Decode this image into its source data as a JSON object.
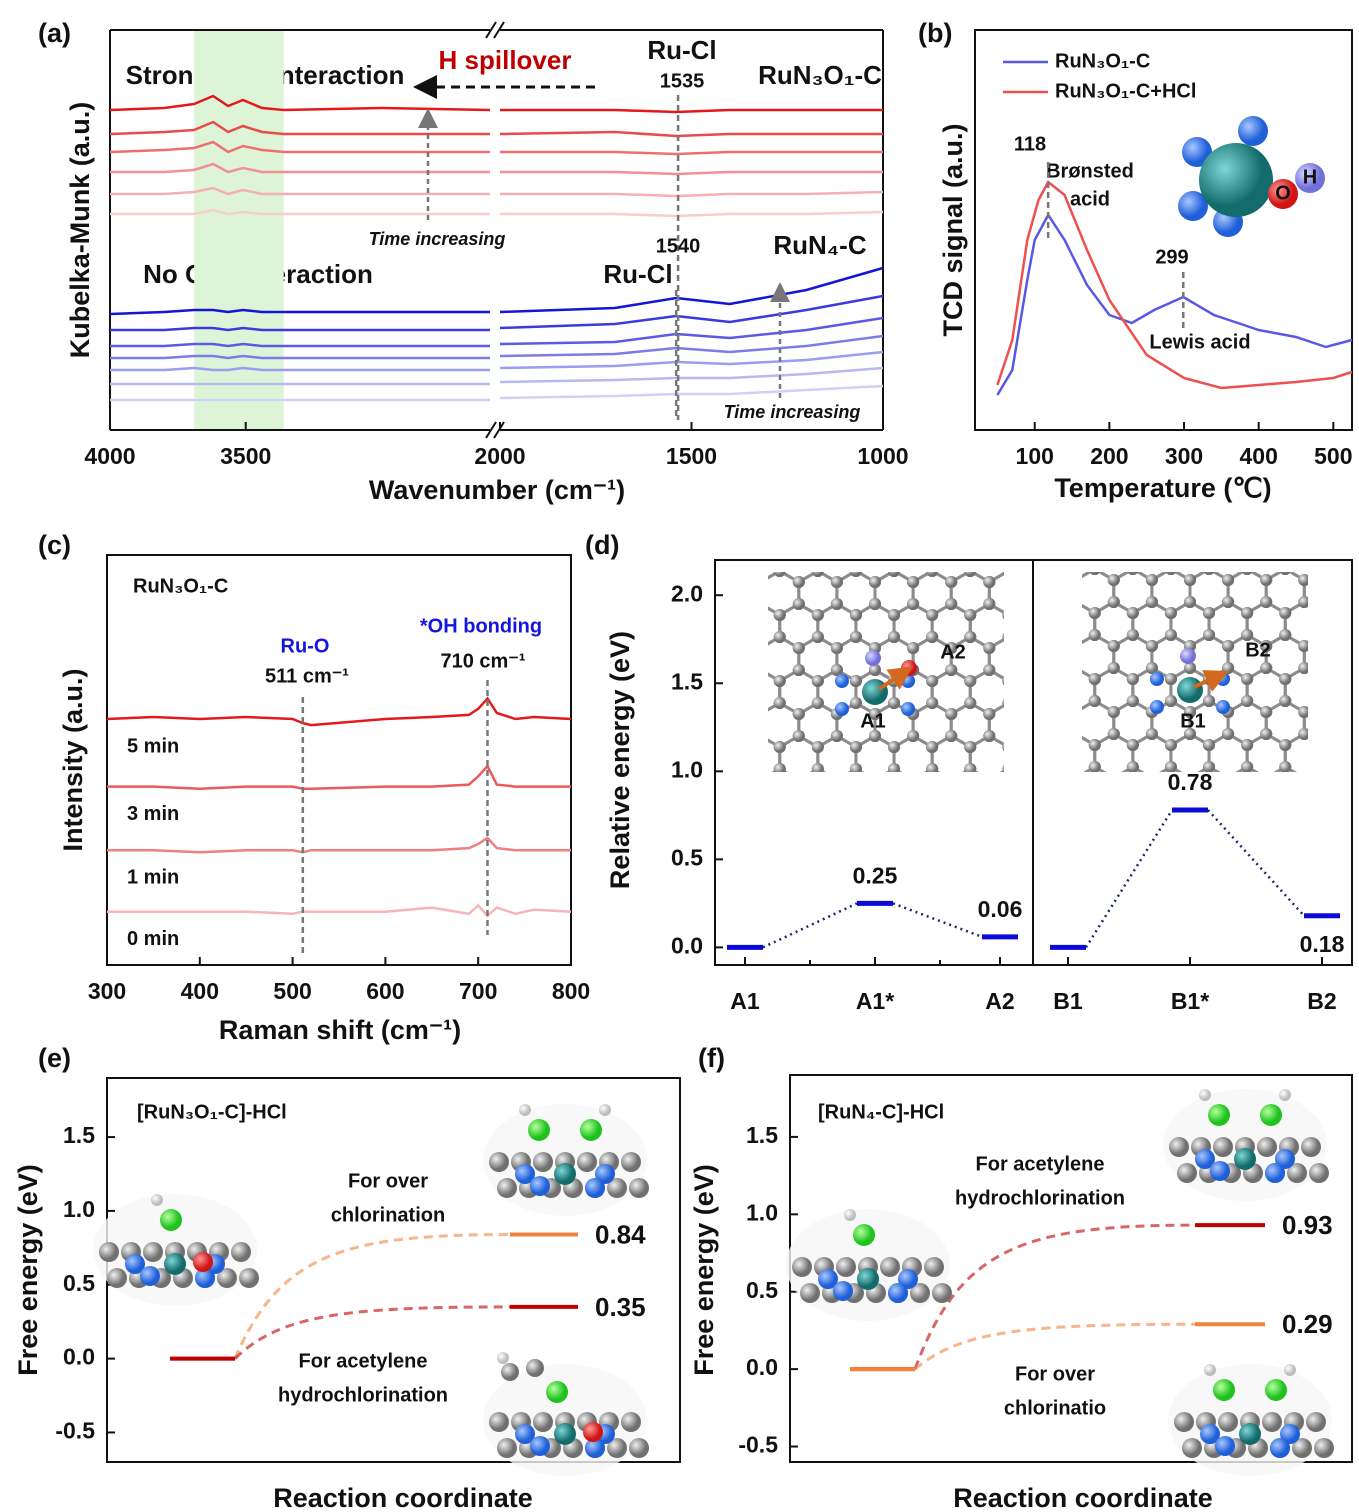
{
  "chart_data": [
    {
      "type": "spectra",
      "panel_label": "(a)",
      "x_label": "Wavenumber (cm⁻¹)",
      "y_label": "Kubelka-Munk (a.u.)",
      "xlim": [
        4000,
        1000
      ],
      "xbreak": [
        2600,
        2000
      ],
      "xticks": [
        4000,
        3500,
        2000,
        1500,
        1000
      ],
      "ylim": [
        0,
        100
      ],
      "highlight": [
        3690,
        3360
      ],
      "highlight_color": "#ddf5d6",
      "x": [
        4000,
        3800,
        3690,
        3620,
        3565,
        3510,
        3440,
        3360,
        3000,
        2600,
        2000,
        1700,
        1540,
        1400,
        1200,
        1000
      ],
      "series": [
        {
          "color": "#e31a1c",
          "values": [
            80,
            80.5,
            81.5,
            83.5,
            81,
            82.5,
            80.5,
            80,
            80.5,
            80,
            80,
            80,
            79.5,
            80,
            80,
            80
          ]
        },
        {
          "color": "#ea4a4c",
          "values": [
            74,
            74.5,
            75,
            77,
            74.5,
            76,
            74.5,
            74,
            74,
            74,
            74,
            74.5,
            73.5,
            74,
            74,
            74
          ]
        },
        {
          "color": "#ef6f71",
          "values": [
            69.5,
            70,
            70.5,
            72,
            69.5,
            71,
            70,
            69.5,
            69.5,
            69.5,
            69.5,
            69.5,
            69,
            69.5,
            69.5,
            69.5
          ]
        },
        {
          "color": "#f39093",
          "values": [
            64.5,
            64.5,
            65,
            66.5,
            64.5,
            65.5,
            64.5,
            64.5,
            64.5,
            64.5,
            64.5,
            64.5,
            64,
            64.5,
            64.5,
            64.5
          ]
        },
        {
          "color": "#f6b0b2",
          "values": [
            59,
            59,
            59.5,
            60.5,
            59,
            60,
            59,
            59,
            59,
            59,
            59,
            59,
            58.5,
            59,
            59,
            59.5
          ]
        },
        {
          "color": "#f9cdce",
          "values": [
            54,
            54,
            54,
            55,
            54,
            54.5,
            54,
            54,
            54,
            54,
            54,
            54,
            53.5,
            54,
            54,
            54.5
          ]
        },
        {
          "color": "#1515d6",
          "values": [
            29,
            29.5,
            30,
            30,
            29.5,
            30,
            29.5,
            29.5,
            29.5,
            29.5,
            29.5,
            30.5,
            33,
            31.5,
            35,
            40.5
          ]
        },
        {
          "color": "#3a3adf",
          "values": [
            25,
            25,
            25.5,
            25.5,
            25,
            25.5,
            25,
            25,
            25,
            25,
            25.5,
            26.5,
            28.5,
            27,
            30,
            33.5
          ]
        },
        {
          "color": "#5a5ae5",
          "values": [
            21,
            21,
            21.5,
            21.5,
            21,
            21.5,
            21,
            21,
            21,
            21,
            21.5,
            22,
            24,
            23,
            25,
            28
          ]
        },
        {
          "color": "#7c7cea",
          "values": [
            18,
            18,
            18.5,
            18.5,
            18,
            18.5,
            18,
            18,
            18,
            18,
            18.5,
            19,
            20.5,
            19.5,
            21,
            23.5
          ]
        },
        {
          "color": "#9c9cf0",
          "values": [
            15,
            15,
            15.5,
            15,
            15,
            15.5,
            15,
            15,
            15,
            15,
            15.5,
            16,
            17,
            16.5,
            17.5,
            19.5
          ]
        },
        {
          "color": "#b8b8f3",
          "values": [
            11.5,
            11.5,
            11.5,
            11.5,
            11.5,
            11.5,
            11.5,
            11.5,
            11.5,
            11.5,
            12,
            12.5,
            13,
            13,
            14,
            15.5
          ]
        },
        {
          "color": "#d0d0f7",
          "values": [
            7.5,
            7.5,
            7.5,
            7.5,
            7.5,
            7.5,
            7.5,
            7.5,
            7.5,
            7.5,
            8,
            8.5,
            9,
            9,
            10,
            11
          ]
        }
      ],
      "peaks": [
        1535,
        1540
      ],
      "annotations": [
        "Strong O-H interaction",
        "H spillover",
        "Ru-Cl",
        "RuN₃O₁-C",
        "Time increasing",
        "No O-H interaction",
        "Ru-Cl",
        "RuN₄-C",
        "Time increasing"
      ]
    },
    {
      "type": "line",
      "panel_label": "(b)",
      "x_label": "Temperature (℃)",
      "y_label": "TCD signal (a.u.)",
      "xlim": [
        20,
        525
      ],
      "xticks": [
        100,
        200,
        300,
        400,
        500
      ],
      "ylim": [
        0,
        100
      ],
      "legend": "upper left",
      "series": [
        {
          "name": "RuN₃O₁-C",
          "color": "#5858e8",
          "x": [
            50,
            70,
            90,
            100,
            118,
            140,
            170,
            200,
            230,
            260,
            299,
            340,
            380,
            400,
            450,
            490,
            525
          ],
          "values": [
            8.75,
            15,
            37.5,
            47.5,
            53.75,
            47.5,
            36.25,
            28.75,
            26.75,
            30,
            33.25,
            28.75,
            26.25,
            25,
            23.25,
            20.75,
            22.5
          ]
        },
        {
          "name": "RuN₃O₁-C+HCl",
          "color": "#ee5050",
          "x": [
            50,
            70,
            90,
            105,
            118,
            140,
            170,
            200,
            250,
            300,
            350,
            400,
            450,
            500,
            525
          ],
          "values": [
            11.25,
            22.5,
            47.5,
            57.5,
            62,
            58.75,
            45,
            32.5,
            18.75,
            13,
            10.5,
            11.25,
            12,
            13,
            14.5
          ]
        }
      ],
      "peaks": [
        118,
        299
      ],
      "annotations": [
        "Brønsted",
        "acid",
        "Lewis acid",
        "O",
        "H"
      ]
    },
    {
      "type": "line",
      "panel_label": "(c)",
      "x_label": "Raman shift (cm⁻¹)",
      "y_label": "Intensity (a.u.)",
      "xlim": [
        300,
        800
      ],
      "xticks": [
        300,
        400,
        500,
        600,
        700,
        800
      ],
      "ylim": [
        0,
        100
      ],
      "legend": "inline",
      "x": [
        300,
        350,
        400,
        450,
        500,
        511,
        520,
        600,
        650,
        690,
        700,
        710,
        720,
        740,
        760,
        800
      ],
      "series": [
        {
          "name": "5 min",
          "color": "#e31a1c",
          "values": [
            60,
            60.5,
            60,
            60.5,
            60,
            59,
            58.5,
            60,
            60.5,
            61,
            62.5,
            65,
            61.5,
            60,
            60.5,
            60
          ]
        },
        {
          "name": "3 min",
          "color": "#eb5a5c",
          "values": [
            43.5,
            43.5,
            43,
            43.5,
            43.5,
            43,
            43,
            43.5,
            43.5,
            44,
            46,
            48.5,
            44,
            43.5,
            43.5,
            43.5
          ]
        },
        {
          "name": "1 min",
          "color": "#ef7f80",
          "values": [
            28,
            28,
            27.5,
            28,
            28,
            27.5,
            28,
            28,
            28,
            28.5,
            29.5,
            31,
            28.5,
            28,
            28,
            28
          ]
        },
        {
          "name": "0 min",
          "color": "#f6b6b7",
          "values": [
            13,
            13,
            13,
            13,
            12.5,
            13,
            13,
            13,
            14,
            12.5,
            14.5,
            12,
            14,
            12.5,
            13.5,
            13
          ]
        }
      ],
      "peaks": [
        {
          "value": 511,
          "label": "511 cm⁻¹"
        },
        {
          "value": 710,
          "label": "710 cm⁻¹"
        }
      ],
      "annotations": [
        "RuN₃O₁-C",
        "Ru-O",
        "*OH bonding"
      ]
    },
    {
      "type": "energy-profile",
      "panel_label": "(d)",
      "y_label": "Relative energy (eV)",
      "ylim": [
        -0.1,
        2.2
      ],
      "yticks": [
        {
          "value": 0,
          "label": "0.0"
        },
        {
          "value": 0.5,
          "label": "0.5"
        },
        {
          "value": 1,
          "label": "1.0"
        },
        {
          "value": 1.5,
          "label": "1.5"
        },
        {
          "value": 2,
          "label": "2.0"
        }
      ],
      "categories": [
        "A1",
        "A1*",
        "A2",
        "B1",
        "B1*",
        "B2"
      ],
      "values": [
        0,
        0.25,
        0.06,
        0,
        0.78,
        0.18
      ],
      "value_labels": [
        null,
        "0.25",
        "0.06",
        null,
        "0.78",
        "0.18"
      ],
      "color": "#0b0bd9",
      "annotations": [
        "A1",
        "A2",
        "B1",
        "B2"
      ]
    },
    {
      "type": "free-energy",
      "panel_label": "(e)",
      "title": "[RuN₃O₁-C]-HCl",
      "y_label": "Free energy (eV)",
      "x_label": "Reaction coordinate",
      "ylim": [
        -0.7,
        1.9
      ],
      "yticks": [
        {
          "value": -0.5,
          "label": "-0.5"
        },
        {
          "value": 0,
          "label": "0.0"
        },
        {
          "value": 0.5,
          "label": "0.5"
        },
        {
          "value": 1,
          "label": "1.0"
        },
        {
          "value": 1.5,
          "label": "1.5"
        }
      ],
      "series": [
        {
          "label": [
            "For over",
            "chlorination"
          ],
          "color": "#f0843c",
          "values": [
            0,
            0.84
          ],
          "value_labels": [
            null,
            "0.84"
          ]
        },
        {
          "label": [
            "For acetylene",
            "hydrochlorination"
          ],
          "color": "#c00000",
          "values": [
            0,
            0.35
          ],
          "value_labels": [
            null,
            "0.35"
          ]
        }
      ]
    },
    {
      "type": "free-energy",
      "panel_label": "(f)",
      "title": "[RuN₄-C]-HCl",
      "y_label": "Free energy (eV)",
      "x_label": "Reaction coordinate",
      "ylim": [
        -0.6,
        1.9
      ],
      "yticks": [
        {
          "value": -0.5,
          "label": "-0.5"
        },
        {
          "value": 0,
          "label": "0.0"
        },
        {
          "value": 0.5,
          "label": "0.5"
        },
        {
          "value": 1,
          "label": "1.0"
        },
        {
          "value": 1.5,
          "label": "1.5"
        }
      ],
      "series": [
        {
          "label": [
            "For acetylene",
            "hydrochlorination"
          ],
          "color": "#c00000",
          "values": [
            0,
            0.93
          ],
          "value_labels": [
            null,
            "0.93"
          ]
        },
        {
          "label": [
            "For over",
            "chlorinatio"
          ],
          "color": "#f0843c",
          "values": [
            0,
            0.29
          ],
          "value_labels": [
            null,
            "0.29"
          ]
        }
      ]
    }
  ]
}
